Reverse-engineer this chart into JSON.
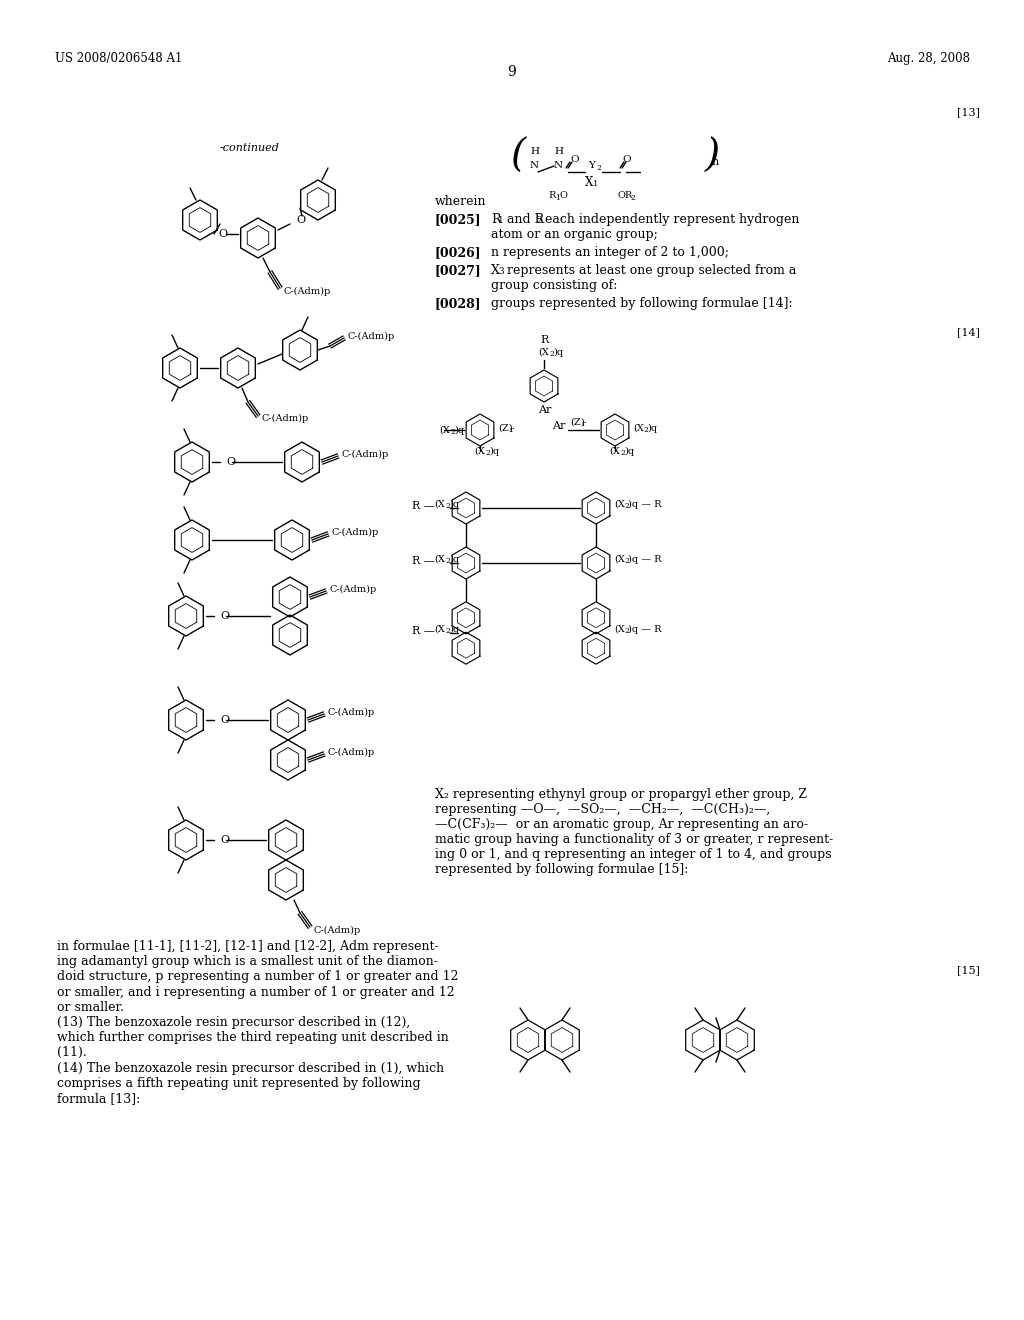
{
  "page_number": "9",
  "left_header": "US 2008/0206548 A1",
  "right_header": "Aug. 28, 2008",
  "background_color": "#ffffff",
  "text_color": "#000000",
  "continued_label": "-continued",
  "formula_label_13": "[13]",
  "formula_label_14": "[14]",
  "formula_label_15": "[15]",
  "wherein_text": "wherein",
  "p0025_tag": "[0025]",
  "p0025_body": "R₁ and R₂ each independently represent hydrogen\natom or an organic group;",
  "p0026_tag": "[0026]",
  "p0026_body": "n represents an integer of 2 to 1,000;",
  "p0027_tag": "[0027]",
  "p0027_body": "X₃ represents at least one group selected from a\ngroup consisting of:",
  "p0028_tag": "[0028]",
  "p0028_body": "groups represented by following formulae [14]:",
  "caption_lines": [
    "X₂ representing ethynyl group or propargyl ether group, Z",
    "representing —O—,  —SO₂—,  —CH₂—,  —C(CH₃)₂—,",
    "—C(CF₃)₂—  or an aromatic group, Ar representing an aro-",
    "matic group having a functionality of 3 or greater, r represent-",
    "ing 0 or 1, and q representing an integer of 1 to 4, and groups",
    "represented by following formulae [15]:"
  ],
  "bottom_lines": [
    "in formulae [11-1], [11-2], [12-1] and [12-2], Adm represent-",
    "ing adamantyl group which is a smallest unit of the diamon-",
    "doid structure, p representing a number of 1 or greater and 12",
    "or smaller, and i representing a number of 1 or greater and 12",
    "or smaller.",
    "(13) The benzoxazole resin precursor described in (12),",
    "which further comprises the third repeating unit described in",
    "(11).",
    "(14) The benzoxazole resin precursor described in (1), which",
    "comprises a fifth repeating unit represented by following",
    "formula [13]:"
  ]
}
